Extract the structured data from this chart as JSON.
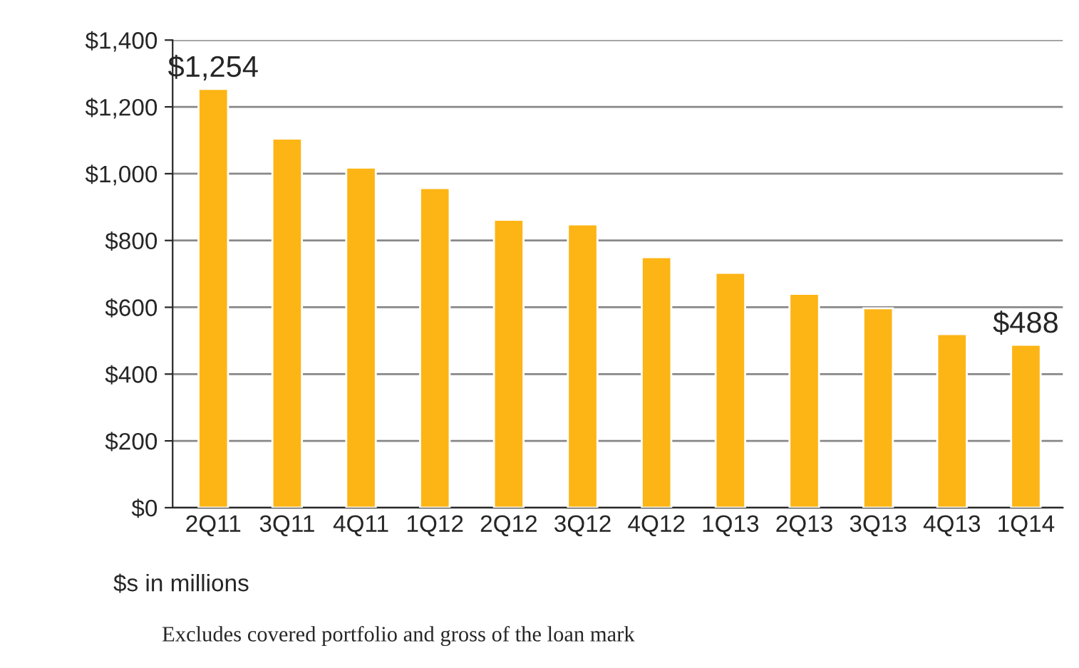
{
  "chart_data": {
    "type": "bar",
    "categories": [
      "2Q11",
      "3Q11",
      "4Q11",
      "1Q12",
      "2Q12",
      "3Q12",
      "4Q12",
      "1Q13",
      "2Q13",
      "3Q13",
      "4Q13",
      "1Q14"
    ],
    "values": [
      1254,
      1105,
      1018,
      957,
      862,
      848,
      750,
      703,
      640,
      597,
      520,
      488
    ],
    "value_labels": [
      "$1,254",
      null,
      null,
      null,
      null,
      null,
      null,
      null,
      null,
      null,
      null,
      "$488"
    ],
    "color": "#fdb515",
    "ylim": [
      0,
      1400
    ],
    "yticks": [
      {
        "value": 0,
        "label": "$0"
      },
      {
        "value": 200,
        "label": "$200"
      },
      {
        "value": 400,
        "label": "$400"
      },
      {
        "value": 600,
        "label": "$600"
      },
      {
        "value": 800,
        "label": "$800"
      },
      {
        "value": 1000,
        "label": "$1,000"
      },
      {
        "value": 1200,
        "label": "$1,200"
      },
      {
        "value": 1400,
        "label": "$1,400"
      }
    ],
    "grid": "y",
    "annotations": [
      "$s in millions",
      "Excludes covered portfolio and gross of the loan mark"
    ]
  }
}
